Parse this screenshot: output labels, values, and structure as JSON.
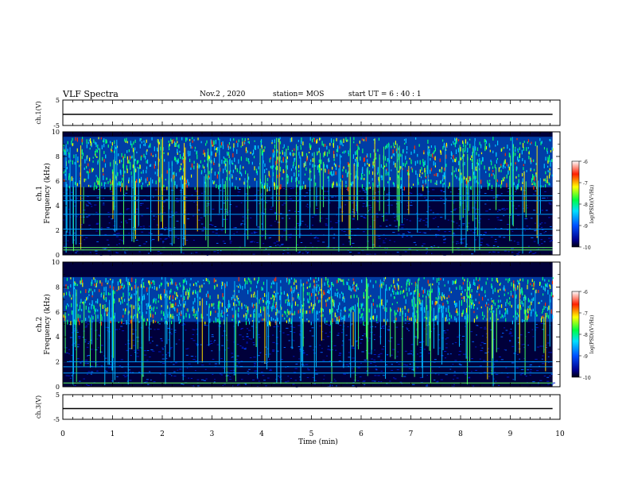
{
  "header": {
    "title": "VLF Spectra",
    "date": "Nov.2  , 2020",
    "station": "station= MOS",
    "start": "start  UT  =   6  : 40 : 1"
  },
  "chart_data": [
    {
      "type": "line",
      "panel": "ch1-waveform",
      "ylabel": "ch.1(V)",
      "ylim": [
        -5,
        5
      ],
      "yticks": [
        "5",
        "-5"
      ],
      "xlim": [
        0,
        10
      ],
      "series": [
        {
          "x": [
            0,
            9.85
          ],
          "y": [
            0,
            0
          ]
        }
      ]
    },
    {
      "type": "heatmap",
      "panel": "ch1-spectrogram",
      "ylabel_top": "ch.1",
      "ylabel": "Frequency  (kHz)",
      "ylim": [
        0,
        10
      ],
      "yticks": [
        "0",
        "2",
        "4",
        "6",
        "8",
        "10"
      ],
      "xlim": [
        0,
        10
      ],
      "data_extent_x": [
        0,
        9.85
      ],
      "emission_band_khz": [
        5.5,
        9.6
      ],
      "colorbar": {
        "label": "log(PSD)(V²/Hz)",
        "range": [
          -10,
          -6
        ],
        "ticks": [
          "-6",
          "-7",
          "-8",
          "-9",
          "-10"
        ]
      }
    },
    {
      "type": "heatmap",
      "panel": "ch2-spectrogram",
      "ylabel_top": "ch.2",
      "ylabel": "Frequency  (kHz)",
      "ylim": [
        0,
        10
      ],
      "yticks": [
        "0",
        "2",
        "4",
        "6",
        "8",
        "10"
      ],
      "xlim": [
        0,
        10
      ],
      "data_extent_x": [
        0,
        9.85
      ],
      "emission_band_khz": [
        5.2,
        8.8
      ],
      "colorbar": {
        "label": "log(PSD)(V²/Hz)",
        "range": [
          -10,
          -6
        ],
        "ticks": [
          "-6",
          "-7",
          "-8",
          "-9",
          "-10"
        ]
      }
    },
    {
      "type": "line",
      "panel": "ch3-waveform",
      "ylabel": "ch.3(V)",
      "ylim": [
        -5,
        5
      ],
      "yticks": [
        "5",
        "-5"
      ],
      "xlim": [
        0,
        10
      ],
      "series": [
        {
          "x": [
            0,
            9.85
          ],
          "y": [
            0,
            0
          ]
        }
      ]
    }
  ],
  "xaxis": {
    "label": "Time  (min)",
    "ticks": [
      "0",
      "1",
      "2",
      "3",
      "4",
      "5",
      "6",
      "7",
      "8",
      "9",
      "10"
    ]
  },
  "colors": {
    "background": "#ffffff",
    "axis": "#000000"
  }
}
